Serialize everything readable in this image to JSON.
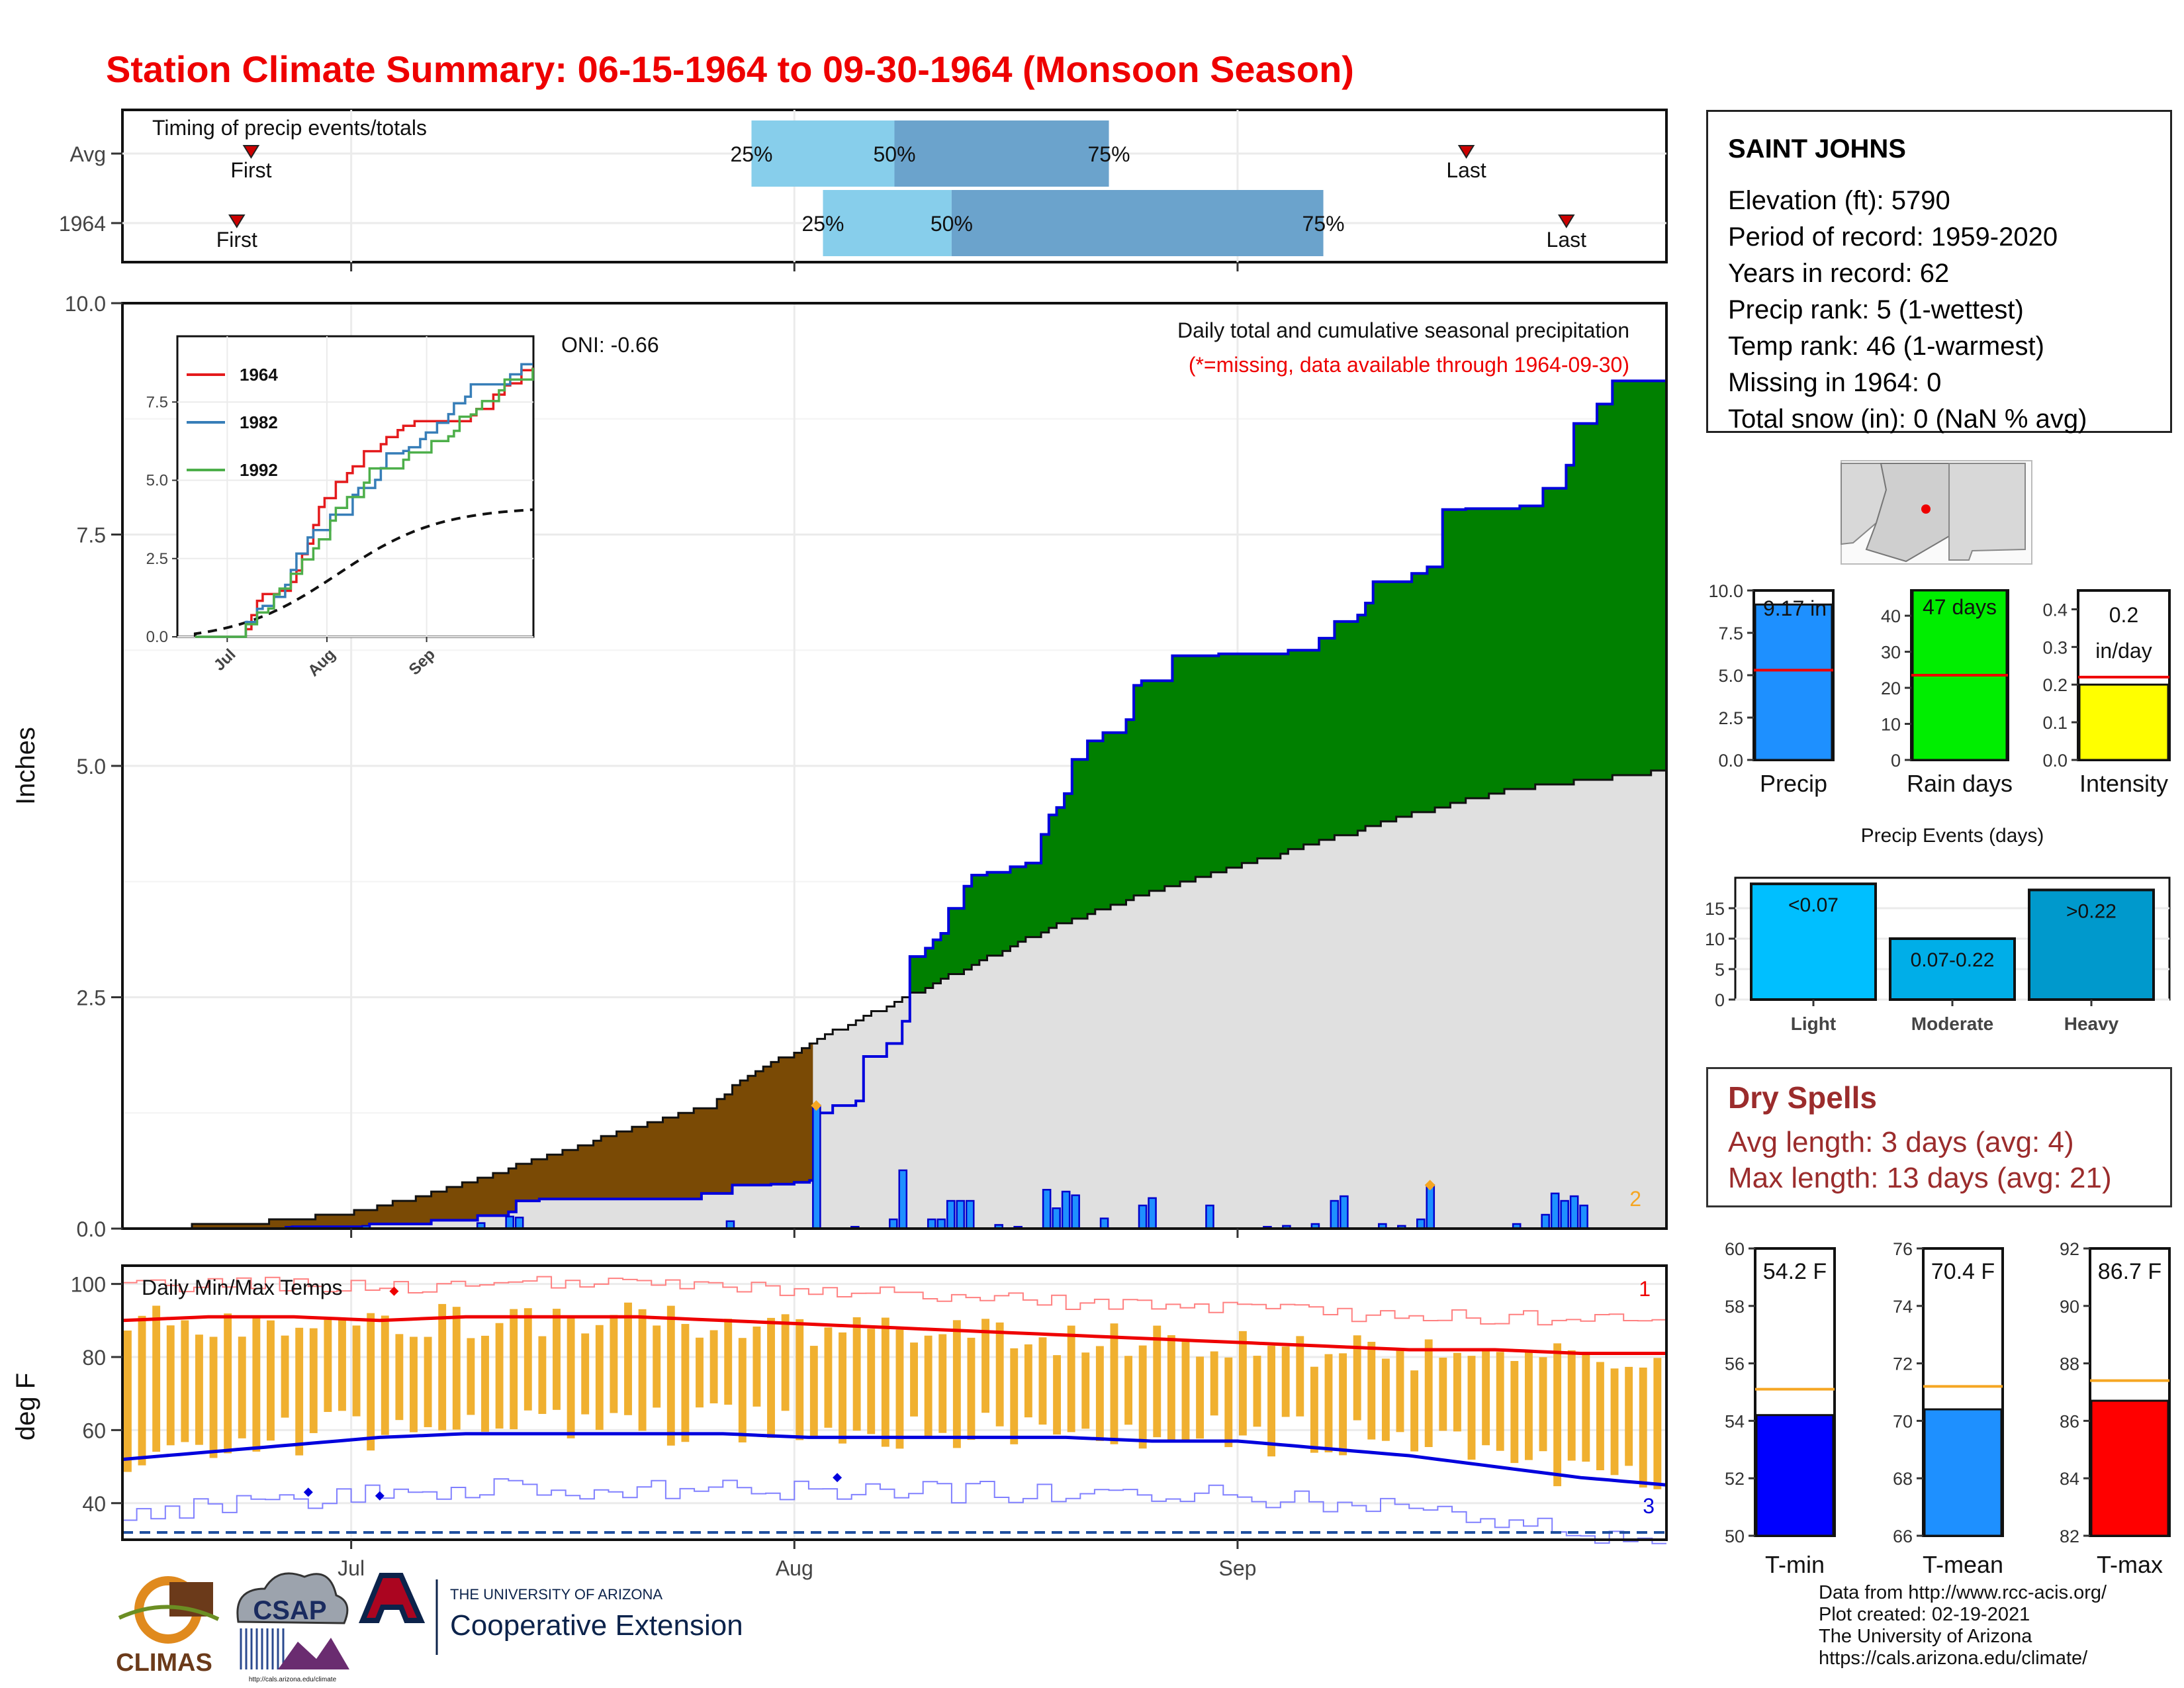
{
  "title": "Station Climate Summary: 06-15-1964 to 09-30-1964 (Monsoon Season)",
  "colors": {
    "title": "#ee0000",
    "cumulative_fill": "#008000",
    "deficit_fill": "#7a4a05",
    "avg_fill": "#e0e0e0",
    "bar": "#1e90ff",
    "dry": "#9b2c2c"
  },
  "month_labels": [
    "Jul",
    "Aug",
    "Sep"
  ],
  "timing": {
    "label": "Timing of precip events/totals",
    "rows": [
      {
        "name": "Avg",
        "first": "First",
        "last": "Last",
        "p25": "25%",
        "p50": "50%",
        "p75": "75%"
      },
      {
        "name": "1964",
        "first": "First",
        "last": "Last",
        "p25": "25%",
        "p50": "50%",
        "p75": "75%"
      }
    ]
  },
  "station": {
    "name": "SAINT JOHNS",
    "lines": [
      "Elevation (ft): 5790",
      "Period of record: 1959-2020",
      "Years in record: 62",
      "Precip rank: 5 (1-wettest)",
      "Temp rank: 46 (1-warmest)",
      "Missing in 1964: 0",
      "Total snow (in): 0 (NaN % avg)"
    ]
  },
  "main": {
    "ylabel": "Inches",
    "subtitle1": "Daily total and cumulative seasonal precipitation",
    "subtitle2": "(*=missing, data available through 1964-09-30)",
    "oni": "ONI: -0.66",
    "corner_value": "2"
  },
  "inset_legend": [
    "1964",
    "1982",
    "1992"
  ],
  "temps": {
    "label": "Daily Min/Max Temps",
    "ylabel": "deg F",
    "marker_top": "1",
    "marker_bottom": "3"
  },
  "summary": {
    "precip": {
      "label": "Precip",
      "value_text": "9.17 in",
      "value": 9.17,
      "avg": 5.3
    },
    "rain_days": {
      "label": "Rain days",
      "value_text": "47 days",
      "value": 47,
      "avg": 23.5
    },
    "intensity": {
      "label": "Intensity",
      "value_text1": "0.2",
      "value_text2": "in/day",
      "value": 0.2,
      "avg": 0.22
    }
  },
  "events": {
    "title": "Precip Events (days)",
    "categories": [
      "Light",
      "Moderate",
      "Heavy"
    ],
    "bar_labels": [
      "<0.07",
      "0.07-0.22",
      ">0.22"
    ],
    "values": [
      19,
      10,
      18
    ]
  },
  "dry_spells": {
    "title": "Dry Spells",
    "line1": "Avg length: 3 days (avg: 4)",
    "line2": "Max length: 13 days (avg: 21)"
  },
  "temp_summary": [
    {
      "label": "T-min",
      "value_text": "54.2 F",
      "value": 54.2,
      "avg": 55.1,
      "ylim": [
        50,
        60
      ],
      "ticks": [
        50,
        52,
        54,
        56,
        58,
        60
      ],
      "color": "#0000ff"
    },
    {
      "label": "T-mean",
      "value_text": "70.4 F",
      "value": 70.4,
      "avg": 71.2,
      "ylim": [
        66,
        76
      ],
      "ticks": [
        66,
        68,
        70,
        72,
        74,
        76
      ],
      "color": "#1e90ff"
    },
    {
      "label": "T-max",
      "value_text": "86.7 F",
      "value": 86.7,
      "avg": 87.4,
      "ylim": [
        82,
        92
      ],
      "ticks": [
        82,
        84,
        86,
        88,
        90,
        92
      ],
      "color": "#ff0000"
    }
  ],
  "credits": [
    "Data from http://www.rcc-acis.org/",
    "Plot created: 02-19-2021",
    "The University of Arizona",
    "https://cals.arizona.edu/climate/"
  ],
  "logos": {
    "climas": "CLIMAS",
    "csap": "CSAP",
    "csap_url": "http://cals.arizona.edu/climate",
    "ua1": "THE UNIVERSITY OF ARIZONA",
    "ua2": "Cooperative Extension"
  },
  "chart_data": [
    {
      "type": "bar",
      "name": "timing",
      "categories": [
        "Avg",
        "1964"
      ],
      "series": [
        {
          "name": "Avg",
          "first": "06-24",
          "p25": "07-29",
          "p50": "08-08",
          "p75": "08-23",
          "last": "09-17"
        },
        {
          "name": "1964",
          "first": "06-23",
          "p25": "08-03",
          "p50": "08-12",
          "p75": "09-07",
          "last": "09-24"
        }
      ]
    },
    {
      "type": "area",
      "name": "cumulative_precipitation",
      "xlim": [
        "06-15",
        "09-30"
      ],
      "ylim": [
        0,
        10
      ],
      "yticks": [
        0.0,
        2.5,
        5.0,
        7.5,
        10.0
      ],
      "ylabel": "Inches",
      "cumulative_1964": [
        [
          0,
          0
        ],
        [
          17,
          0.02
        ],
        [
          25,
          0.05
        ],
        [
          32,
          0.09
        ],
        [
          37,
          0.14
        ],
        [
          40,
          0.18
        ],
        [
          41,
          0.3
        ],
        [
          43,
          0.32
        ],
        [
          60,
          0.38
        ],
        [
          63,
          0.47
        ],
        [
          67,
          0.48
        ],
        [
          70,
          0.5
        ],
        [
          71,
          0.52
        ],
        [
          72,
          1.25
        ],
        [
          74,
          1.33
        ],
        [
          76,
          1.38
        ],
        [
          77,
          1.86
        ],
        [
          79,
          2.0
        ],
        [
          81,
          2.24
        ],
        [
          82,
          2.94
        ],
        [
          83,
          3.03
        ],
        [
          84,
          3.12
        ],
        [
          85,
          3.19
        ],
        [
          86,
          3.46
        ],
        [
          87,
          3.7
        ],
        [
          88,
          3.82
        ],
        [
          90,
          3.85
        ],
        [
          92,
          3.91
        ],
        [
          94,
          3.95
        ],
        [
          95,
          4.26
        ],
        [
          96,
          4.47
        ],
        [
          97,
          4.55
        ],
        [
          98,
          4.7
        ],
        [
          99,
          5.07
        ],
        [
          100,
          5.27
        ],
        [
          102,
          5.36
        ],
        [
          104,
          5.5
        ],
        [
          105,
          5.87
        ],
        [
          106,
          5.92
        ],
        [
          109,
          6.19
        ],
        [
          114,
          6.21
        ],
        [
          121,
          6.25
        ],
        [
          124,
          6.38
        ],
        [
          126,
          6.56
        ],
        [
          128,
          6.63
        ],
        [
          129,
          6.76
        ],
        [
          130,
          6.99
        ],
        [
          134,
          7.08
        ],
        [
          136,
          7.15
        ],
        [
          137,
          7.77
        ],
        [
          140,
          7.78
        ],
        [
          145,
          7.81
        ],
        [
          148,
          8.0
        ],
        [
          150,
          8.25
        ],
        [
          151,
          8.7
        ],
        [
          153,
          8.91
        ],
        [
          155,
          9.16
        ],
        [
          160,
          9.16
        ],
        [
          161,
          9.13
        ]
      ],
      "average": [
        [
          0,
          0
        ],
        [
          10,
          0.03
        ],
        [
          20,
          0.08
        ],
        [
          30,
          0.18
        ],
        [
          40,
          0.38
        ],
        [
          50,
          0.65
        ],
        [
          60,
          0.92
        ],
        [
          70,
          1.2
        ],
        [
          76,
          1.32
        ],
        [
          80,
          1.6
        ],
        [
          90,
          2.05
        ],
        [
          100,
          2.45
        ],
        [
          110,
          2.85
        ],
        [
          120,
          3.25
        ],
        [
          130,
          3.55
        ],
        [
          140,
          3.8
        ],
        [
          150,
          4.05
        ],
        [
          160,
          4.3
        ],
        [
          170,
          4.55
        ],
        [
          180,
          4.75
        ],
        [
          190,
          4.85
        ],
        [
          200,
          4.95
        ]
      ],
      "daily_1964": [
        [
          17,
          0.02
        ],
        [
          25,
          0.03
        ],
        [
          37,
          0.06
        ],
        [
          40,
          0.13
        ],
        [
          41,
          0.12
        ],
        [
          63,
          0.08
        ],
        [
          72,
          1.33
        ],
        [
          76,
          0.02
        ],
        [
          80,
          0.1
        ],
        [
          81,
          0.63
        ],
        [
          84,
          0.1
        ],
        [
          85,
          0.1
        ],
        [
          86,
          0.3
        ],
        [
          87,
          0.3
        ],
        [
          88,
          0.3
        ],
        [
          91,
          0.04
        ],
        [
          93,
          0.02
        ],
        [
          96,
          0.42
        ],
        [
          97,
          0.22
        ],
        [
          98,
          0.4
        ],
        [
          99,
          0.36
        ],
        [
          102,
          0.11
        ],
        [
          106,
          0.25
        ],
        [
          107,
          0.33
        ],
        [
          113,
          0.25
        ],
        [
          119,
          0.02
        ],
        [
          121,
          0.03
        ],
        [
          124,
          0.05
        ],
        [
          126,
          0.3
        ],
        [
          127,
          0.35
        ],
        [
          131,
          0.05
        ],
        [
          133,
          0.03
        ],
        [
          135,
          0.1
        ],
        [
          136,
          0.47
        ],
        [
          145,
          0.05
        ],
        [
          148,
          0.15
        ],
        [
          149,
          0.38
        ],
        [
          150,
          0.3
        ],
        [
          151,
          0.35
        ],
        [
          152,
          0.25
        ]
      ]
    },
    {
      "type": "line",
      "name": "inset_cumulative",
      "xticks": [
        "Jul",
        "Aug",
        "Sep"
      ],
      "ylim": [
        0,
        9.5
      ],
      "yticks": [
        0.0,
        2.5,
        5.0,
        7.5
      ],
      "series": [
        {
          "name": "1964",
          "color": "#e41a1c"
        },
        {
          "name": "1982",
          "color": "#377eb8"
        },
        {
          "name": "1992",
          "color": "#4daf4a"
        }
      ]
    },
    {
      "type": "bar",
      "name": "daily_temps",
      "ylim": [
        30,
        105
      ],
      "yticks": [
        40,
        60,
        80,
        100
      ],
      "ylabel": "deg F",
      "avg_max": [
        90,
        91,
        91,
        90,
        91,
        91,
        91,
        90,
        89,
        88,
        87,
        86,
        85,
        84,
        83,
        82,
        82,
        81,
        81
      ],
      "avg_min": [
        52,
        54,
        56,
        58,
        59,
        59,
        59,
        59,
        58,
        58,
        58,
        58,
        57,
        57,
        55,
        53,
        50,
        47,
        45
      ]
    },
    {
      "type": "bar",
      "name": "precip_events",
      "categories": [
        "Light",
        "Moderate",
        "Heavy"
      ],
      "values": [
        19,
        10,
        18
      ],
      "ylim": [
        0,
        20
      ]
    }
  ]
}
